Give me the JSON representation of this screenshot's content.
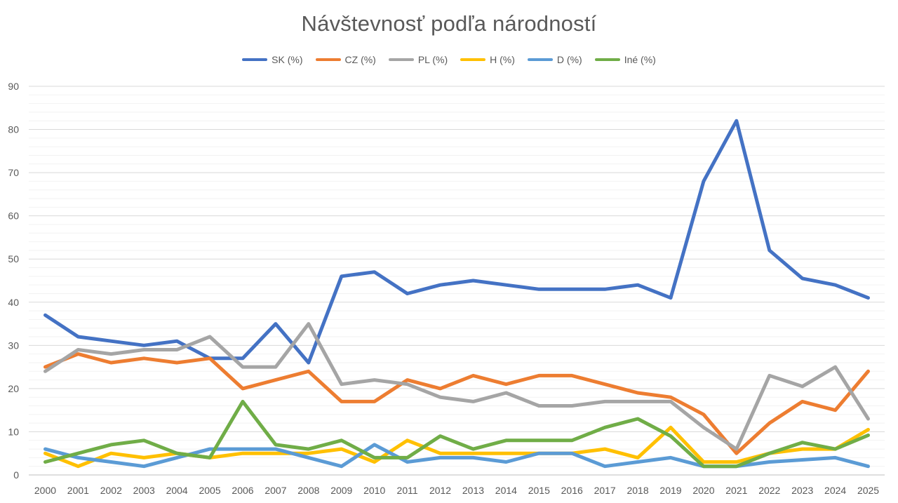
{
  "chart_data": {
    "type": "line",
    "title": "Návštevnosť podľa národností",
    "xlabel": "",
    "ylabel": "",
    "ylim": [
      0,
      90
    ],
    "y_ticks": [
      0,
      10,
      20,
      30,
      40,
      50,
      60,
      70,
      80,
      90
    ],
    "grid": true,
    "legend_position": "top",
    "categories": [
      "2000",
      "2001",
      "2002",
      "2003",
      "2004",
      "2005",
      "2006",
      "2007",
      "2008",
      "2009",
      "2010",
      "2011",
      "2012",
      "2013",
      "2014",
      "2015",
      "2016",
      "2017",
      "2018",
      "2019",
      "2020",
      "2021",
      "2022",
      "2023",
      "2024",
      "2025"
    ],
    "series": [
      {
        "name": "SK (%)",
        "color": "#4472C4",
        "values": [
          37,
          32,
          31,
          30,
          31,
          27,
          27,
          35,
          26,
          46,
          47,
          42,
          44,
          45,
          44,
          43,
          43,
          43,
          44,
          41,
          68,
          82,
          52,
          45.5,
          44,
          41
        ]
      },
      {
        "name": "CZ (%)",
        "color": "#ED7D31",
        "values": [
          25,
          28,
          26,
          27,
          26,
          27,
          20,
          22,
          24,
          17,
          17,
          22,
          20,
          23,
          21,
          23,
          23,
          21,
          19,
          18,
          14,
          5,
          12,
          17,
          15,
          24
        ]
      },
      {
        "name": "PL (%)",
        "color": "#A5A5A5",
        "values": [
          24,
          29,
          28,
          29,
          29,
          32,
          25,
          25,
          35,
          21,
          22,
          21,
          18,
          17,
          19,
          16,
          16,
          17,
          17,
          17,
          11,
          6,
          23,
          20.5,
          25,
          13
        ]
      },
      {
        "name": "H (%)",
        "color": "#FFC000",
        "values": [
          5,
          2,
          5,
          4,
          5,
          4,
          5,
          5,
          5,
          6,
          3,
          8,
          5,
          5,
          5,
          5,
          5,
          6,
          4,
          11,
          3,
          3,
          5,
          6,
          6,
          10.5
        ]
      },
      {
        "name": "D (%)",
        "color": "#5B9BD5",
        "values": [
          6,
          4,
          3,
          2,
          4,
          6,
          6,
          6,
          4,
          2,
          7,
          3,
          4,
          4,
          3,
          5,
          5,
          2,
          3,
          4,
          2,
          2,
          3,
          3.5,
          4,
          2
        ]
      },
      {
        "name": "Iné (%)",
        "color": "#70AD47",
        "values": [
          3,
          5,
          7,
          8,
          5,
          4,
          17,
          7,
          6,
          8,
          4,
          4,
          9,
          6,
          8,
          8,
          8,
          11,
          13,
          9,
          2,
          2,
          5,
          7.5,
          6,
          9.2
        ]
      }
    ]
  }
}
